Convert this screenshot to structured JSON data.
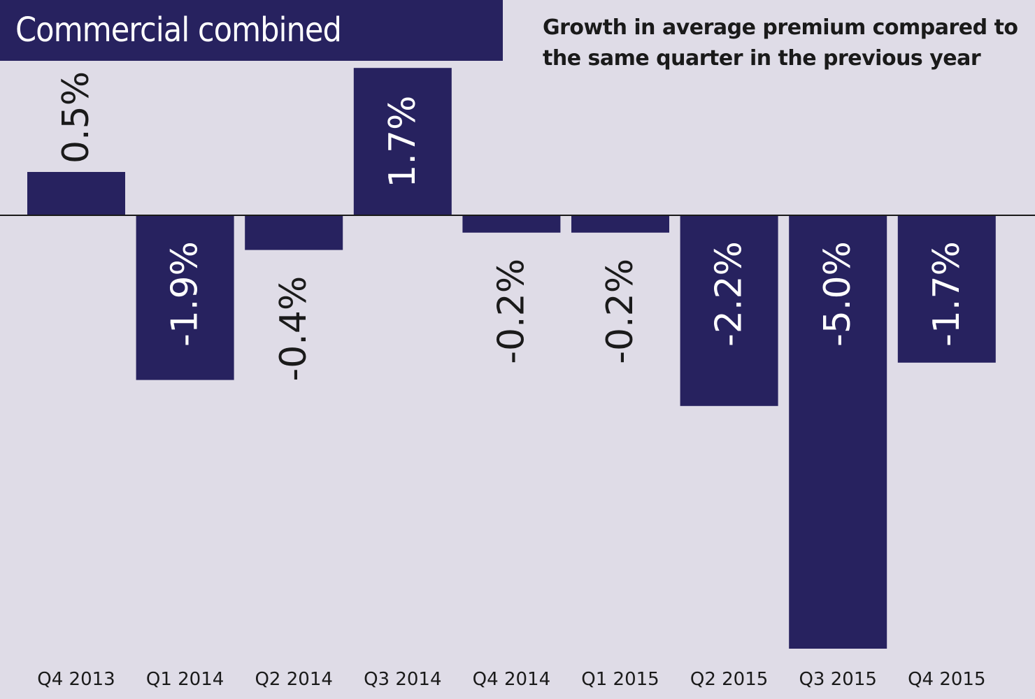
{
  "header": {
    "title": "Commercial combined",
    "subtitle_line1": "Growth in average premium compared to",
    "subtitle_line2": "the same quarter in the previous year"
  },
  "colors": {
    "background": "#dfdce7",
    "bar": "#27225f",
    "label_inside": "#ffffff",
    "label_outside": "#1a1a1a"
  },
  "chart_data": {
    "type": "bar",
    "title": "Commercial combined",
    "subtitle": "Growth in average premium compared to the same quarter in the previous year",
    "categories": [
      "Q4 2013",
      "Q1 2014",
      "Q2 2014",
      "Q3 2014",
      "Q4 2014",
      "Q1 2015",
      "Q2 2015",
      "Q3 2015",
      "Q4 2015"
    ],
    "values": [
      0.5,
      -1.9,
      -0.4,
      1.7,
      -0.2,
      -0.2,
      -2.2,
      -5.0,
      -1.7
    ],
    "data_labels": [
      "0.5%",
      "-1.9%",
      "-0.4%",
      "1.7%",
      "-0.2%",
      "-0.2%",
      "-2.2%",
      "-5.0%",
      "-1.7%"
    ],
    "xlabel": "",
    "ylabel": "",
    "unit": "%",
    "ylim": [
      -5.0,
      1.7
    ],
    "grid": false,
    "legend": "none",
    "label_orientation": "vertical"
  }
}
